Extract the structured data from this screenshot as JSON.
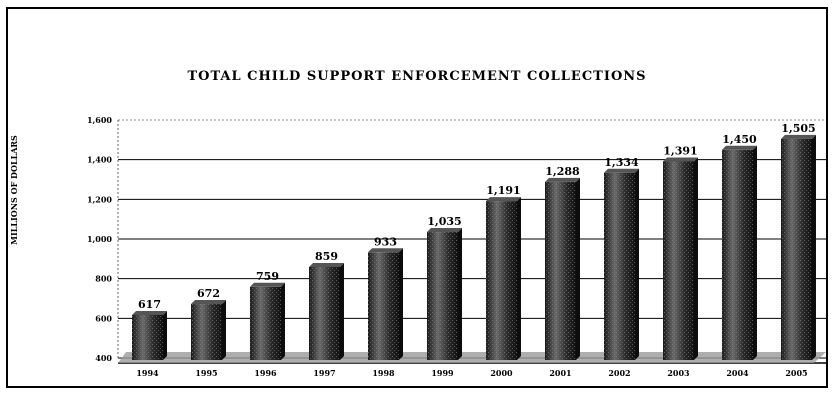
{
  "chart_data": {
    "type": "bar",
    "title": "TOTAL CHILD SUPPORT ENFORCEMENT COLLECTIONS",
    "ylabel": "MILLIONS OF DOLLARS",
    "xlabel": "",
    "categories": [
      "1994",
      "1995",
      "1996",
      "1997",
      "1998",
      "1999",
      "2000",
      "2001",
      "2002",
      "2003",
      "2004",
      "2005"
    ],
    "values": [
      617,
      672,
      759,
      859,
      933,
      1035,
      1191,
      1288,
      1334,
      1391,
      1450,
      1505
    ],
    "value_labels": [
      "617",
      "672",
      "759",
      "859",
      "933",
      "1,035",
      "1,191",
      "1,288",
      "1,334",
      "1,391",
      "1,450",
      "1,505"
    ],
    "ylim": [
      400,
      1600
    ],
    "yticks": [
      "400",
      "600",
      "800",
      "1,000",
      "1,200",
      "1,400",
      "1,600"
    ],
    "grid": true,
    "legend": "none",
    "colors": {
      "bar": "#2a2a2a",
      "bar_highlight": "#6a6a6a",
      "floor": "#9a9a9a",
      "grid": "#000000"
    }
  }
}
